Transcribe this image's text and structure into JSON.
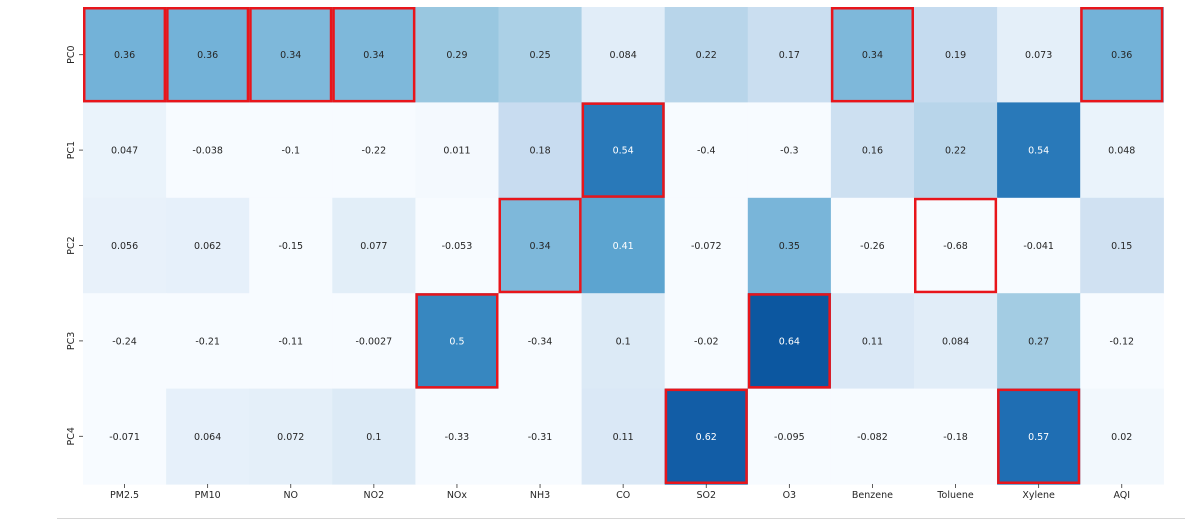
{
  "chart_data": {
    "type": "heatmap",
    "title": "",
    "xlabel": "",
    "ylabel": "",
    "x_categories": [
      "PM2.5",
      "PM10",
      "NO",
      "NO2",
      "NOx",
      "NH3",
      "CO",
      "SO2",
      "O3",
      "Benzene",
      "Toluene",
      "Xylene",
      "AQI"
    ],
    "y_categories": [
      "PC0",
      "PC1",
      "PC2",
      "PC3",
      "PC4"
    ],
    "values": [
      [
        0.36,
        0.36,
        0.34,
        0.34,
        0.29,
        0.25,
        0.084,
        0.22,
        0.17,
        0.34,
        0.19,
        0.073,
        0.36
      ],
      [
        0.047,
        -0.038,
        -0.1,
        -0.22,
        0.011,
        0.18,
        0.54,
        -0.4,
        -0.3,
        0.16,
        0.22,
        0.54,
        0.048
      ],
      [
        0.056,
        0.062,
        -0.15,
        0.077,
        -0.053,
        0.34,
        0.41,
        -0.072,
        0.35,
        -0.26,
        -0.68,
        -0.041,
        0.15
      ],
      [
        -0.24,
        -0.21,
        -0.11,
        -0.0027,
        0.5,
        -0.34,
        0.1,
        -0.02,
        0.64,
        0.11,
        0.084,
        0.27,
        -0.12
      ],
      [
        -0.071,
        0.064,
        0.072,
        0.1,
        -0.33,
        -0.31,
        0.11,
        0.62,
        -0.095,
        -0.082,
        -0.18,
        0.57,
        0.02
      ]
    ],
    "value_labels": [
      [
        "0.36",
        "0.36",
        "0.34",
        "0.34",
        "0.29",
        "0.25",
        "0.084",
        "0.22",
        "0.17",
        "0.34",
        "0.19",
        "0.073",
        "0.36"
      ],
      [
        "0.047",
        "-0.038",
        "-0.1",
        "-0.22",
        "0.011",
        "0.18",
        "0.54",
        "-0.4",
        "-0.3",
        "0.16",
        "0.22",
        "0.54",
        "0.048"
      ],
      [
        "0.056",
        "0.062",
        "-0.15",
        "0.077",
        "-0.053",
        "0.34",
        "0.41",
        "-0.072",
        "0.35",
        "-0.26",
        "-0.68",
        "-0.041",
        "0.15"
      ],
      [
        "-0.24",
        "-0.21",
        "-0.11",
        "-0.0027",
        "0.5",
        "-0.34",
        "0.1",
        "-0.02",
        "0.64",
        "0.11",
        "0.084",
        "0.27",
        "-0.12"
      ],
      [
        "-0.071",
        "0.064",
        "0.072",
        "0.1",
        "-0.33",
        "-0.31",
        "0.11",
        "0.62",
        "-0.095",
        "-0.082",
        "-0.18",
        "0.57",
        "0.02"
      ]
    ],
    "colormap": "Blues",
    "color_range": [
      0,
      0.75
    ],
    "highlighted_cells": [
      [
        0,
        0
      ],
      [
        0,
        1
      ],
      [
        0,
        2
      ],
      [
        0,
        3
      ],
      [
        0,
        9
      ],
      [
        0,
        12
      ],
      [
        1,
        6
      ],
      [
        2,
        5
      ],
      [
        2,
        10
      ],
      [
        3,
        4
      ],
      [
        3,
        8
      ],
      [
        4,
        7
      ],
      [
        4,
        11
      ]
    ],
    "highlight_color": "#e8151b",
    "grid": false,
    "legend": "none"
  }
}
